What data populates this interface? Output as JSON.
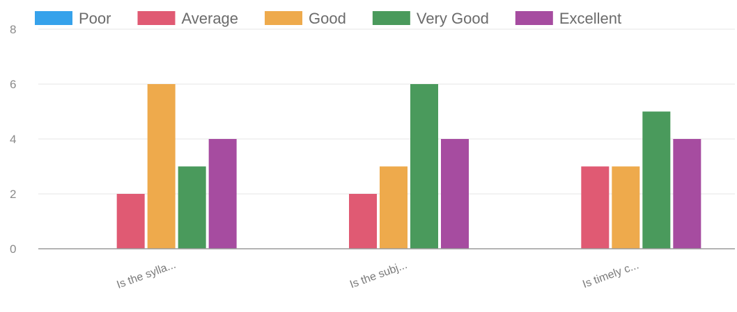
{
  "chart_data": {
    "type": "bar",
    "categories": [
      "Is the sylla...",
      "Is the subj...",
      "Is timely c..."
    ],
    "series": [
      {
        "name": "Poor",
        "values": [
          0,
          0,
          0
        ],
        "color": "#36a2eb"
      },
      {
        "name": "Average",
        "values": [
          2,
          2,
          3
        ],
        "color": "#e05a73"
      },
      {
        "name": "Good",
        "values": [
          6,
          3,
          3
        ],
        "color": "#eeaa4c"
      },
      {
        "name": "Very Good",
        "values": [
          3,
          6,
          5
        ],
        "color": "#4a9a5c"
      },
      {
        "name": "Excellent",
        "values": [
          4,
          4,
          4
        ],
        "color": "#a64ca0"
      }
    ],
    "yticks": [
      "0",
      "2",
      "4",
      "6",
      "8"
    ],
    "ylim": [
      0,
      8
    ],
    "grid": true,
    "legend": "top"
  }
}
